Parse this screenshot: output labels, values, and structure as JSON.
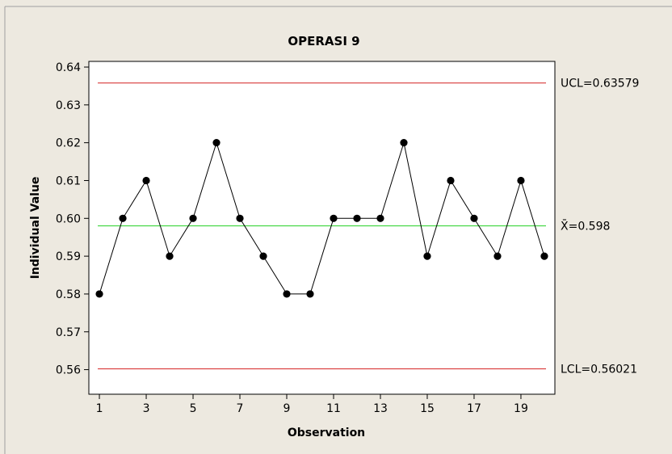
{
  "chart_data": {
    "type": "line",
    "title": "OPERASI 9",
    "xlabel": "Observation",
    "ylabel": "Individual Value",
    "x": [
      1,
      2,
      3,
      4,
      5,
      6,
      7,
      8,
      9,
      10,
      11,
      12,
      13,
      14,
      15,
      16,
      17,
      18,
      19,
      20
    ],
    "series": [
      {
        "values": [
          0.58,
          0.6,
          0.61,
          0.59,
          0.6,
          0.62,
          0.6,
          0.59,
          0.58,
          0.58,
          0.6,
          0.6,
          0.6,
          0.62,
          0.59,
          0.61,
          0.6,
          0.59,
          0.61,
          0.59
        ]
      }
    ],
    "xlim": [
      0.55,
      20.45
    ],
    "ylim": [
      0.5535,
      0.6415
    ],
    "xticks": [
      1,
      3,
      5,
      7,
      9,
      11,
      13,
      15,
      17,
      19
    ],
    "yticks": [
      0.56,
      0.57,
      0.58,
      0.59,
      0.6,
      0.61,
      0.62,
      0.63,
      0.64
    ],
    "ytick_labels": [
      "0.56",
      "0.57",
      "0.58",
      "0.59",
      "0.60",
      "0.61",
      "0.62",
      "0.63",
      "0.64"
    ],
    "grid": false,
    "reference_lines": [
      {
        "value": 0.63579,
        "label": "UCL=0.63579",
        "color": "#d42020"
      },
      {
        "value": 0.598,
        "label": "X̄=0.598",
        "color": "#22d022"
      },
      {
        "value": 0.56021,
        "label": "LCL=0.56021",
        "color": "#d42020"
      }
    ],
    "marker_color": "#000000",
    "line_color": "#000000"
  },
  "colors": {
    "background": "#ede9e0",
    "plot_area": "#ffffff"
  }
}
